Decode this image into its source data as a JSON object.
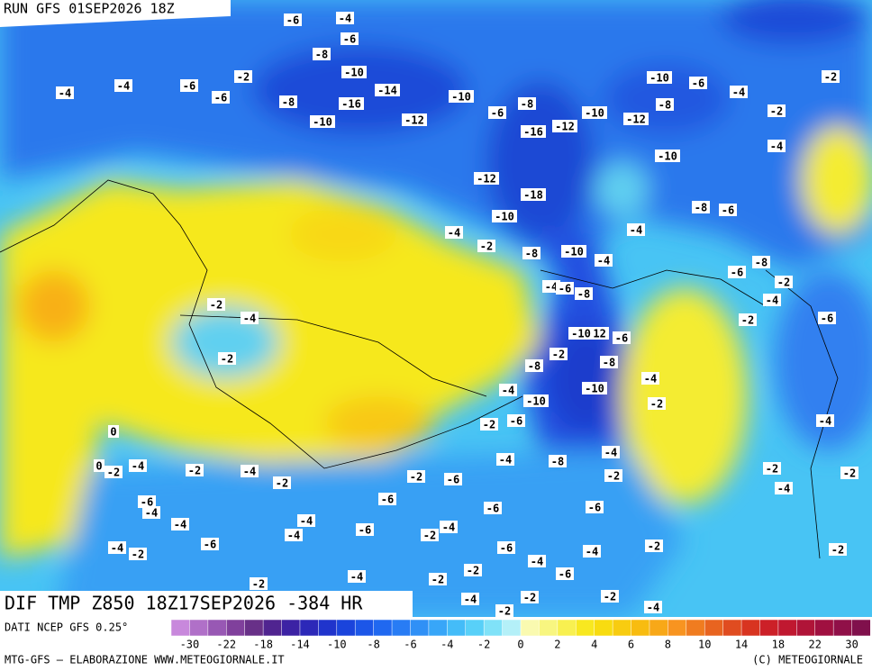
{
  "header": {
    "run": "RUN GFS 01SEP2026 18Z"
  },
  "map": {
    "title": "DIF TMP Z850 18Z17SEP2026 -384 HR",
    "contour_labels": [
      -6,
      -4,
      -6,
      -8,
      -10,
      -2,
      -4,
      -4,
      -6,
      -6,
      -8,
      -16,
      -14,
      -10,
      -12,
      -10,
      -6,
      -8,
      -16,
      -12,
      -10,
      -12,
      -8,
      -10,
      -6,
      -4,
      -2,
      -2,
      -4,
      -10,
      -12,
      -18,
      -10,
      -8,
      -6,
      -4,
      -2,
      -4,
      -8,
      -10,
      -4,
      -6,
      -8,
      -2,
      -4,
      -2,
      -6,
      -4,
      -6,
      -8,
      -2,
      -4,
      -2,
      -12,
      -10,
      -6,
      -8,
      -2,
      -8,
      -4,
      -10,
      -10,
      -4,
      -2,
      -6,
      -2,
      0,
      0,
      -2,
      -4,
      -2,
      -4,
      -2,
      -2,
      -6,
      -4,
      -8,
      -4,
      -2,
      -6,
      -6,
      -6,
      -2,
      -4,
      -4,
      -2,
      -6,
      -4,
      -4,
      -4,
      -4,
      -6,
      -2,
      -4,
      -6,
      -4,
      -2,
      -6,
      -4,
      -2,
      -4,
      -6,
      -2,
      -2,
      -4,
      -2,
      -2,
      -2,
      -2,
      -4,
      -4,
      -2
    ]
  },
  "legend": {
    "source": "DATI NCEP GFS 0.25°",
    "ticks": [
      -30,
      -22,
      -18,
      -14,
      -10,
      -8,
      -6,
      -4,
      -2,
      0,
      2,
      4,
      6,
      8,
      10,
      14,
      18,
      22,
      30
    ],
    "colors": [
      "#c888dc",
      "#b070c8",
      "#9858b4",
      "#80409c",
      "#683088",
      "#502490",
      "#3c22a4",
      "#2c28b8",
      "#2034cc",
      "#1a44dc",
      "#1c56e8",
      "#2068f0",
      "#287cf4",
      "#3090f6",
      "#38a6f8",
      "#44bcf8",
      "#58d0f8",
      "#80e2f8",
      "#b4f0f8",
      "#fafab0",
      "#f8f680",
      "#f8f050",
      "#f8e820",
      "#f8dc10",
      "#f8cc10",
      "#f8bc10",
      "#f8a818",
      "#f89420",
      "#f07c20",
      "#e86420",
      "#e04c20",
      "#d83420",
      "#cc2028",
      "#c01830",
      "#b01438",
      "#a01040",
      "#901048",
      "#80104c"
    ]
  },
  "footer": {
    "credit": "MTG-GFS — ELABORAZIONE WWW.METEOGIORNALE.IT",
    "copyright": "(C) METEOGIORNALE"
  }
}
